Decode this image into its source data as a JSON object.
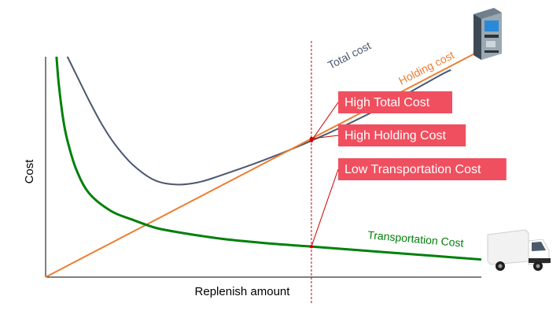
{
  "chart_data": {
    "type": "line",
    "xlabel": "Replenish amount",
    "ylabel": "Cost",
    "xlim": [
      0,
      100
    ],
    "ylim": [
      0,
      100
    ],
    "grid": false,
    "legend": "none",
    "series": [
      {
        "name": "Total cost",
        "color": "#4a5870",
        "x": [
          5,
          7,
          10,
          13,
          16,
          20,
          25,
          30,
          35,
          40,
          50,
          60,
          70,
          80,
          90,
          93
        ],
        "y": [
          100,
          92,
          80,
          69,
          60,
          51,
          44,
          42,
          43,
          46,
          53,
          61,
          70,
          80,
          91,
          94
        ]
      },
      {
        "name": "Holding cost",
        "color": "#ed7d31",
        "x": [
          0,
          100
        ],
        "y": [
          0,
          103
        ]
      },
      {
        "name": "Transportation Cost",
        "color": "#00800a",
        "x": [
          2.5,
          3,
          4,
          5,
          7,
          10,
          15,
          20,
          25,
          30,
          40,
          50,
          60,
          70,
          80,
          90,
          100
        ],
        "y": [
          100,
          88,
          72,
          62,
          49,
          38,
          30,
          26,
          22.5,
          20.5,
          17.5,
          15.5,
          14,
          12.5,
          11,
          9.5,
          8
        ]
      }
    ],
    "marker_x": 61,
    "callouts": [
      {
        "text": "High Total Cost",
        "target_series": "Total cost"
      },
      {
        "text": "High Holding Cost",
        "target_series": "Holding cost"
      },
      {
        "text": "Low Transportation Cost",
        "target_series": "Transportation Cost"
      }
    ],
    "icons": [
      "atm-icon",
      "delivery-truck-icon"
    ],
    "callout_color": "#f04f5f",
    "marker_color": "#cc0000"
  }
}
